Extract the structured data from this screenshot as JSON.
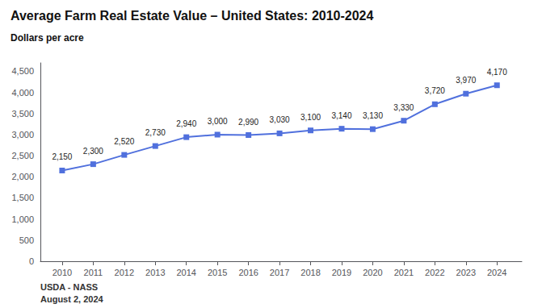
{
  "chart_data": {
    "type": "line",
    "title": "Average Farm Real Estate Value – United States: 2010-2024",
    "ylabel": "Dollars per acre",
    "annotations": [
      "USDA - NASS",
      "August 2, 2024"
    ],
    "x": [
      2010,
      2011,
      2012,
      2013,
      2014,
      2015,
      2016,
      2017,
      2018,
      2019,
      2020,
      2021,
      2022,
      2023,
      2024
    ],
    "values": [
      2150,
      2300,
      2520,
      2730,
      2940,
      3000,
      2990,
      3030,
      3100,
      3140,
      3130,
      3330,
      3720,
      3970,
      4170
    ],
    "value_labels": [
      "2,150",
      "2,300",
      "2,520",
      "2,730",
      "2,940",
      "3,000",
      "2,990",
      "3,030",
      "3,100",
      "3,140",
      "3,130",
      "3,330",
      "3,720",
      "3,970",
      "4,170"
    ],
    "data_labels": true,
    "marker": "square",
    "grid": false,
    "xlim": [
      2009.3,
      2024.8
    ],
    "xticks": [
      2010,
      2011,
      2012,
      2013,
      2014,
      2015,
      2016,
      2017,
      2018,
      2019,
      2020,
      2021,
      2022,
      2023,
      2024
    ],
    "ylim": [
      0,
      4700
    ],
    "yticks": [
      0,
      500,
      {
        "value": 1000,
        "label": "1,000"
      },
      {
        "value": 1500,
        "label": "1,500"
      },
      {
        "value": 2000,
        "label": "2,000"
      },
      {
        "value": 2500,
        "label": "2,500"
      },
      {
        "value": 3000,
        "label": "3,000"
      },
      {
        "value": 3500,
        "label": "3,500"
      },
      {
        "value": 4000,
        "label": "4,000"
      },
      {
        "value": 4500,
        "label": "4,500"
      }
    ]
  }
}
